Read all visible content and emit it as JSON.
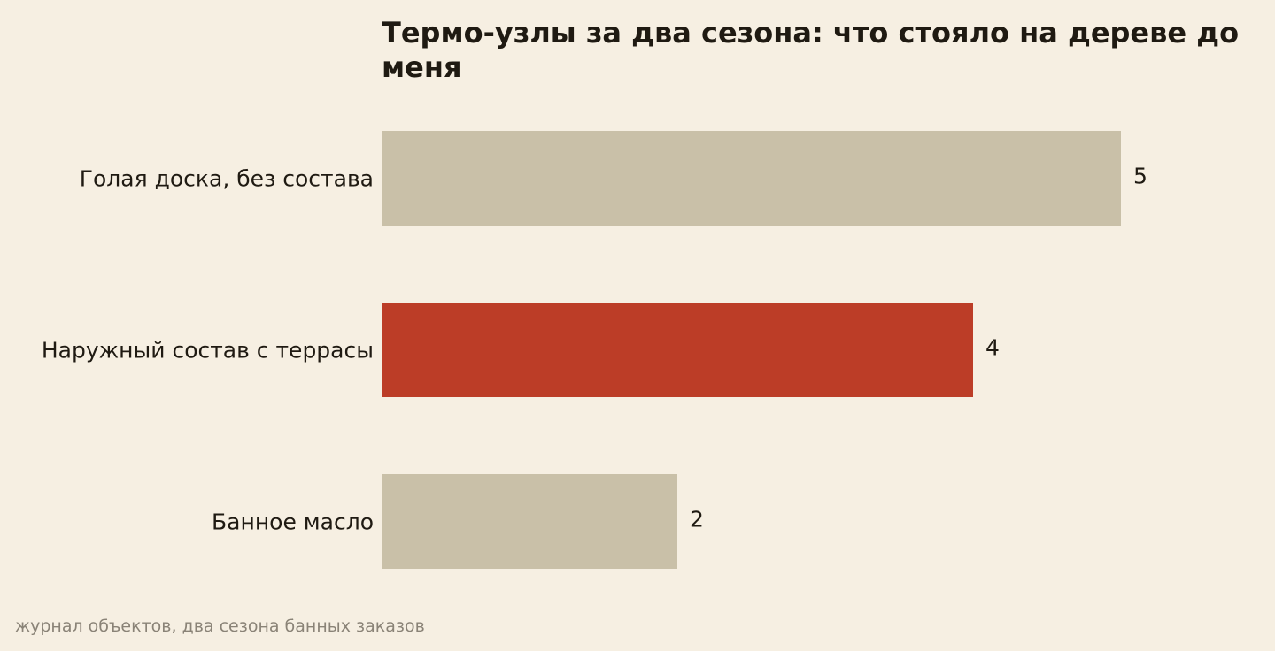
{
  "colors": {
    "background": "#f6efe2",
    "bar_default": "#c9c0a8",
    "bar_highlight": "#bc3d27",
    "text": "#1f1a12",
    "note": "#8a8377"
  },
  "chart_data": {
    "type": "bar",
    "orientation": "horizontal",
    "title": "Термо-узлы за два сезона: что стояло на дереве до меня",
    "xlabel": "",
    "ylabel": "",
    "categories": [
      "Голая доска, без состава",
      "Наружный состав с террасы",
      "Банное масло"
    ],
    "values": [
      5,
      4,
      2
    ],
    "value_labels": [
      "5",
      "4",
      "2"
    ],
    "highlight_index": 1,
    "xlim": [
      0,
      5
    ],
    "grid": false,
    "legend": "none"
  },
  "source_note": "журнал объектов, два сезона банных заказов"
}
